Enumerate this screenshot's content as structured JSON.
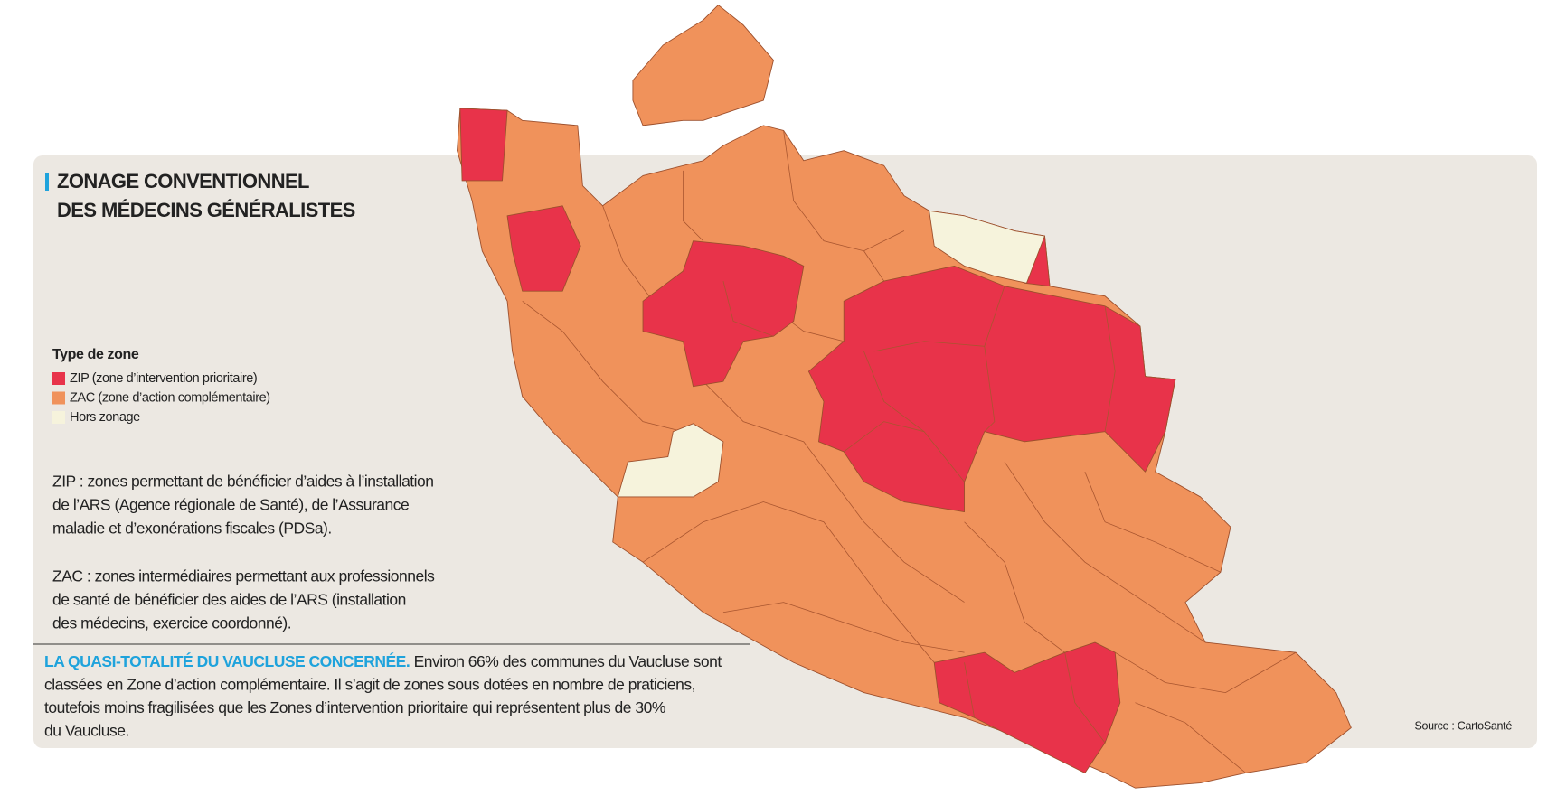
{
  "title": [
    "ZONAGE CONVENTIONNEL",
    "DES MÉDECINS GÉNÉRALISTES"
  ],
  "legend": {
    "title": "Type de zone",
    "items": [
      {
        "label": "ZIP (zone d’intervention prioritaire)",
        "color": "#e8334a"
      },
      {
        "label": "ZAC (zone d’action complémentaire)",
        "color": "#f0925b"
      },
      {
        "label": "Hors zonage",
        "color": "#f6f3dc"
      }
    ]
  },
  "notes": [
    [
      "ZIP : zones permettant de bénéficier d’aides à l’installation",
      "de l’ARS (Agence régionale de Santé), de l’Assurance",
      "maladie et d’exonérations fiscales (PDSa)."
    ],
    [
      "ZAC : zones intermédiaires permettant aux professionnels",
      "de santé de bénéficier des aides de l’ARS (installation",
      "des médecins, exercice coordonné)."
    ]
  ],
  "footer": {
    "heading": "LA QUASI-TOTALITÉ DU VAUCLUSE CONCERNÉE.",
    "lines": [
      "Environ 66% des communes du Vaucluse sont",
      "classées en Zone d’action complémentaire. Il s’agit de zones sous dotées en nombre de praticiens,",
      "toutefois moins fragilisées que les Zones d’intervention prioritaire qui représentent plus de 30%",
      "du Vaucluse."
    ]
  },
  "source": "Source : CartoSanté"
}
